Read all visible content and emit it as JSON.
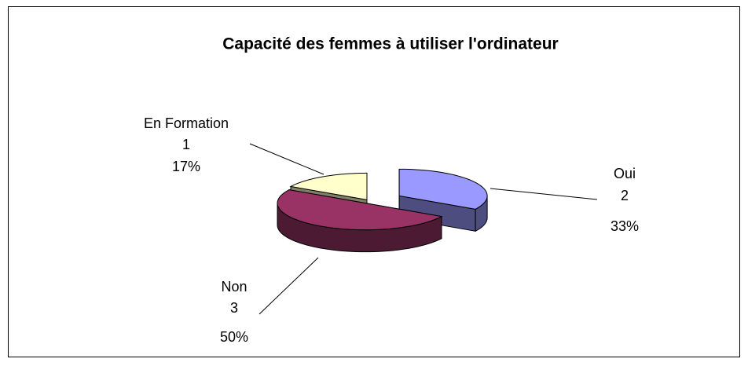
{
  "chart_data": {
    "type": "pie3d",
    "title": "Capacité des femmes à utiliser l'ordinateur",
    "categories": [
      "Oui",
      "Non",
      "En Formation"
    ],
    "values": [
      2,
      3,
      1
    ],
    "percentages": [
      33,
      50,
      17
    ],
    "percentage_labels": [
      "33%",
      "50%",
      "17%"
    ],
    "colors": [
      "#9999ff",
      "#993366",
      "#ffffcc"
    ]
  }
}
